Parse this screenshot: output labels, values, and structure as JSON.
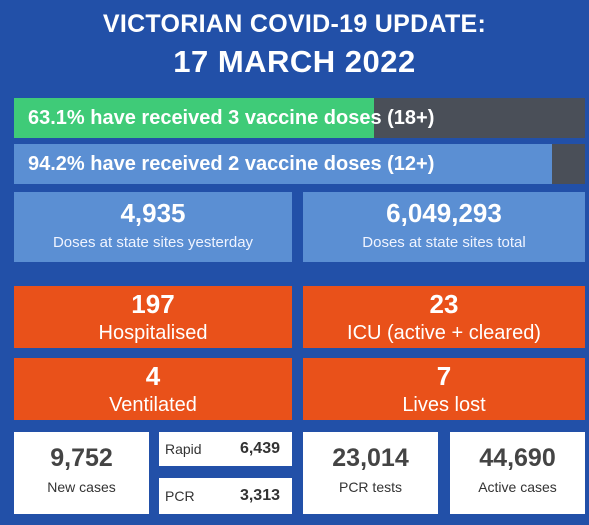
{
  "header": {
    "title": "VICTORIAN COVID-19 UPDATE:",
    "date": "17 MARCH 2022"
  },
  "vaccination": [
    {
      "text": "63.1% have received 3 vaccine doses (18+)",
      "percent": 63.1,
      "color": "#3fcb78"
    },
    {
      "text": "94.2% have received 2 vaccine doses (12+)",
      "percent": 94.2,
      "color": "#5b8fd3"
    }
  ],
  "doses": {
    "yesterday": {
      "value": "4,935",
      "label": "Doses at state sites yesterday"
    },
    "total": {
      "value": "6,049,293",
      "label": "Doses at state sites total"
    }
  },
  "hospital": {
    "hospitalised": {
      "value": "197",
      "label": "Hospitalised"
    },
    "icu": {
      "value": "23",
      "label": "ICU (active + cleared)"
    },
    "ventilated": {
      "value": "4",
      "label": "Ventilated"
    },
    "lives_lost": {
      "value": "7",
      "label": "Lives lost"
    }
  },
  "cases": {
    "new": {
      "value": "9,752",
      "label": "New cases"
    },
    "rapid": {
      "label": "Rapid",
      "value": "6,439"
    },
    "pcr": {
      "label": "PCR",
      "value": "3,313"
    },
    "pcr_tests": {
      "value": "23,014",
      "label": "PCR tests"
    },
    "active": {
      "value": "44,690",
      "label": "Active cases"
    }
  }
}
